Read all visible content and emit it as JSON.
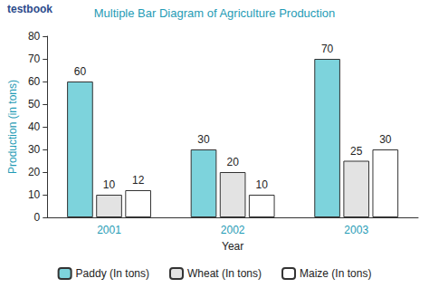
{
  "chart_data": {
    "type": "bar",
    "title": "Multiple Bar Diagram of Agriculture Production",
    "annotations": [
      {
        "text": "testbook"
      }
    ],
    "x_label": "Year",
    "y_label": "Production (in tons)",
    "categories": [
      "2001",
      "2002",
      "2003"
    ],
    "series": [
      {
        "name": "Paddy (In tons)",
        "color": "#7dd3dc",
        "values": [
          60,
          30,
          70
        ]
      },
      {
        "name": "Wheat (In tons)",
        "color": "#e3e3e3",
        "values": [
          10,
          20,
          25
        ]
      },
      {
        "name": "Maize (In tons)",
        "color": "#ffffff",
        "values": [
          12,
          10,
          30
        ]
      }
    ],
    "ylim": [
      0,
      80
    ],
    "yticks": [
      0,
      10,
      20,
      30,
      40,
      50,
      60,
      70,
      80
    ],
    "grid": false,
    "legend": "bottom",
    "data_labels": true
  }
}
